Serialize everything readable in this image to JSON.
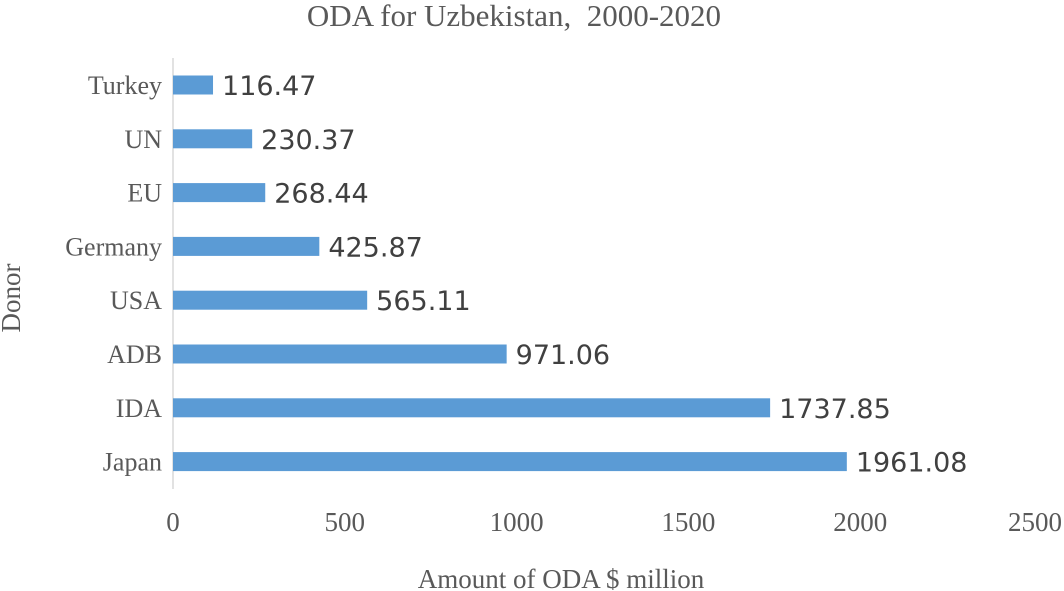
{
  "chart_data": {
    "type": "bar",
    "orientation": "horizontal",
    "title": "ODA for Uzbekistan,  2000-2020",
    "xlabel": "Amount of ODA $ million",
    "ylabel": "Donor",
    "categories": [
      "Turkey",
      "UN",
      "EU",
      "Germany",
      "USA",
      "ADB",
      "IDA",
      "Japan"
    ],
    "values": [
      116.47,
      230.37,
      268.44,
      425.87,
      565.11,
      971.06,
      1737.85,
      1961.08
    ],
    "data_labels": [
      "116.47",
      "230.37",
      "268.44",
      "425.87",
      "565.11",
      "971.06",
      "1737.85",
      "1961.08"
    ],
    "xlim": [
      0,
      2500
    ],
    "xticks": [
      0,
      500,
      1000,
      1500,
      2000,
      2500
    ],
    "xtick_labels": [
      "0",
      "500",
      "1000",
      "1500",
      "2000",
      "2500"
    ],
    "grid": false,
    "legend": "none",
    "bar_color": "#5B9BD5",
    "axis_color": "#D9D9D9",
    "text_color": "#595959",
    "label_color": "#404040"
  }
}
